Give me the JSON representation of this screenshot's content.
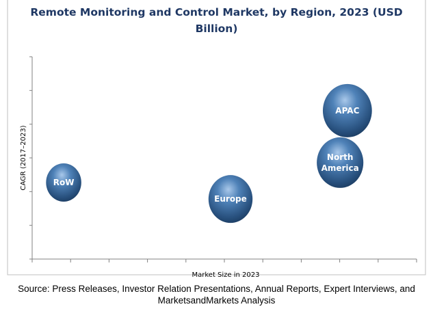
{
  "chart_data": {
    "type": "scatter",
    "subtype": "bubble",
    "title": "Remote Monitoring and Control Market, by Region, 2023 (USD Billion)",
    "title_lines": [
      "Remote Monitoring and Control Market, by Region, 2023 (USD",
      "Billion)"
    ],
    "xlabel": "Market Size in 2023",
    "ylabel": "CAGR (2017–2023)",
    "xlim": [
      0,
      10
    ],
    "ylim": [
      0,
      6
    ],
    "x_ticks": 10,
    "y_ticks": 6,
    "grid": false,
    "points": [
      {
        "name": "RoW",
        "label_lines": [
          "RoW"
        ],
        "x": 0.82,
        "y": 2.27,
        "size": 28
      },
      {
        "name": "Europe",
        "label_lines": [
          "Europe"
        ],
        "x": 5.16,
        "y": 1.78,
        "size": 35
      },
      {
        "name": "North America",
        "label_lines": [
          "North",
          "America"
        ],
        "x": 8.01,
        "y": 2.86,
        "size": 37
      },
      {
        "name": "APAC",
        "label_lines": [
          "APAC"
        ],
        "x": 8.2,
        "y": 4.4,
        "size": 39
      }
    ],
    "bubble_color": "#2e5a8a"
  },
  "source": "Source: Press Releases, Investor Relation Presentations, Annual Reports, Expert Interviews, and MarketsandMarkets Analysis"
}
